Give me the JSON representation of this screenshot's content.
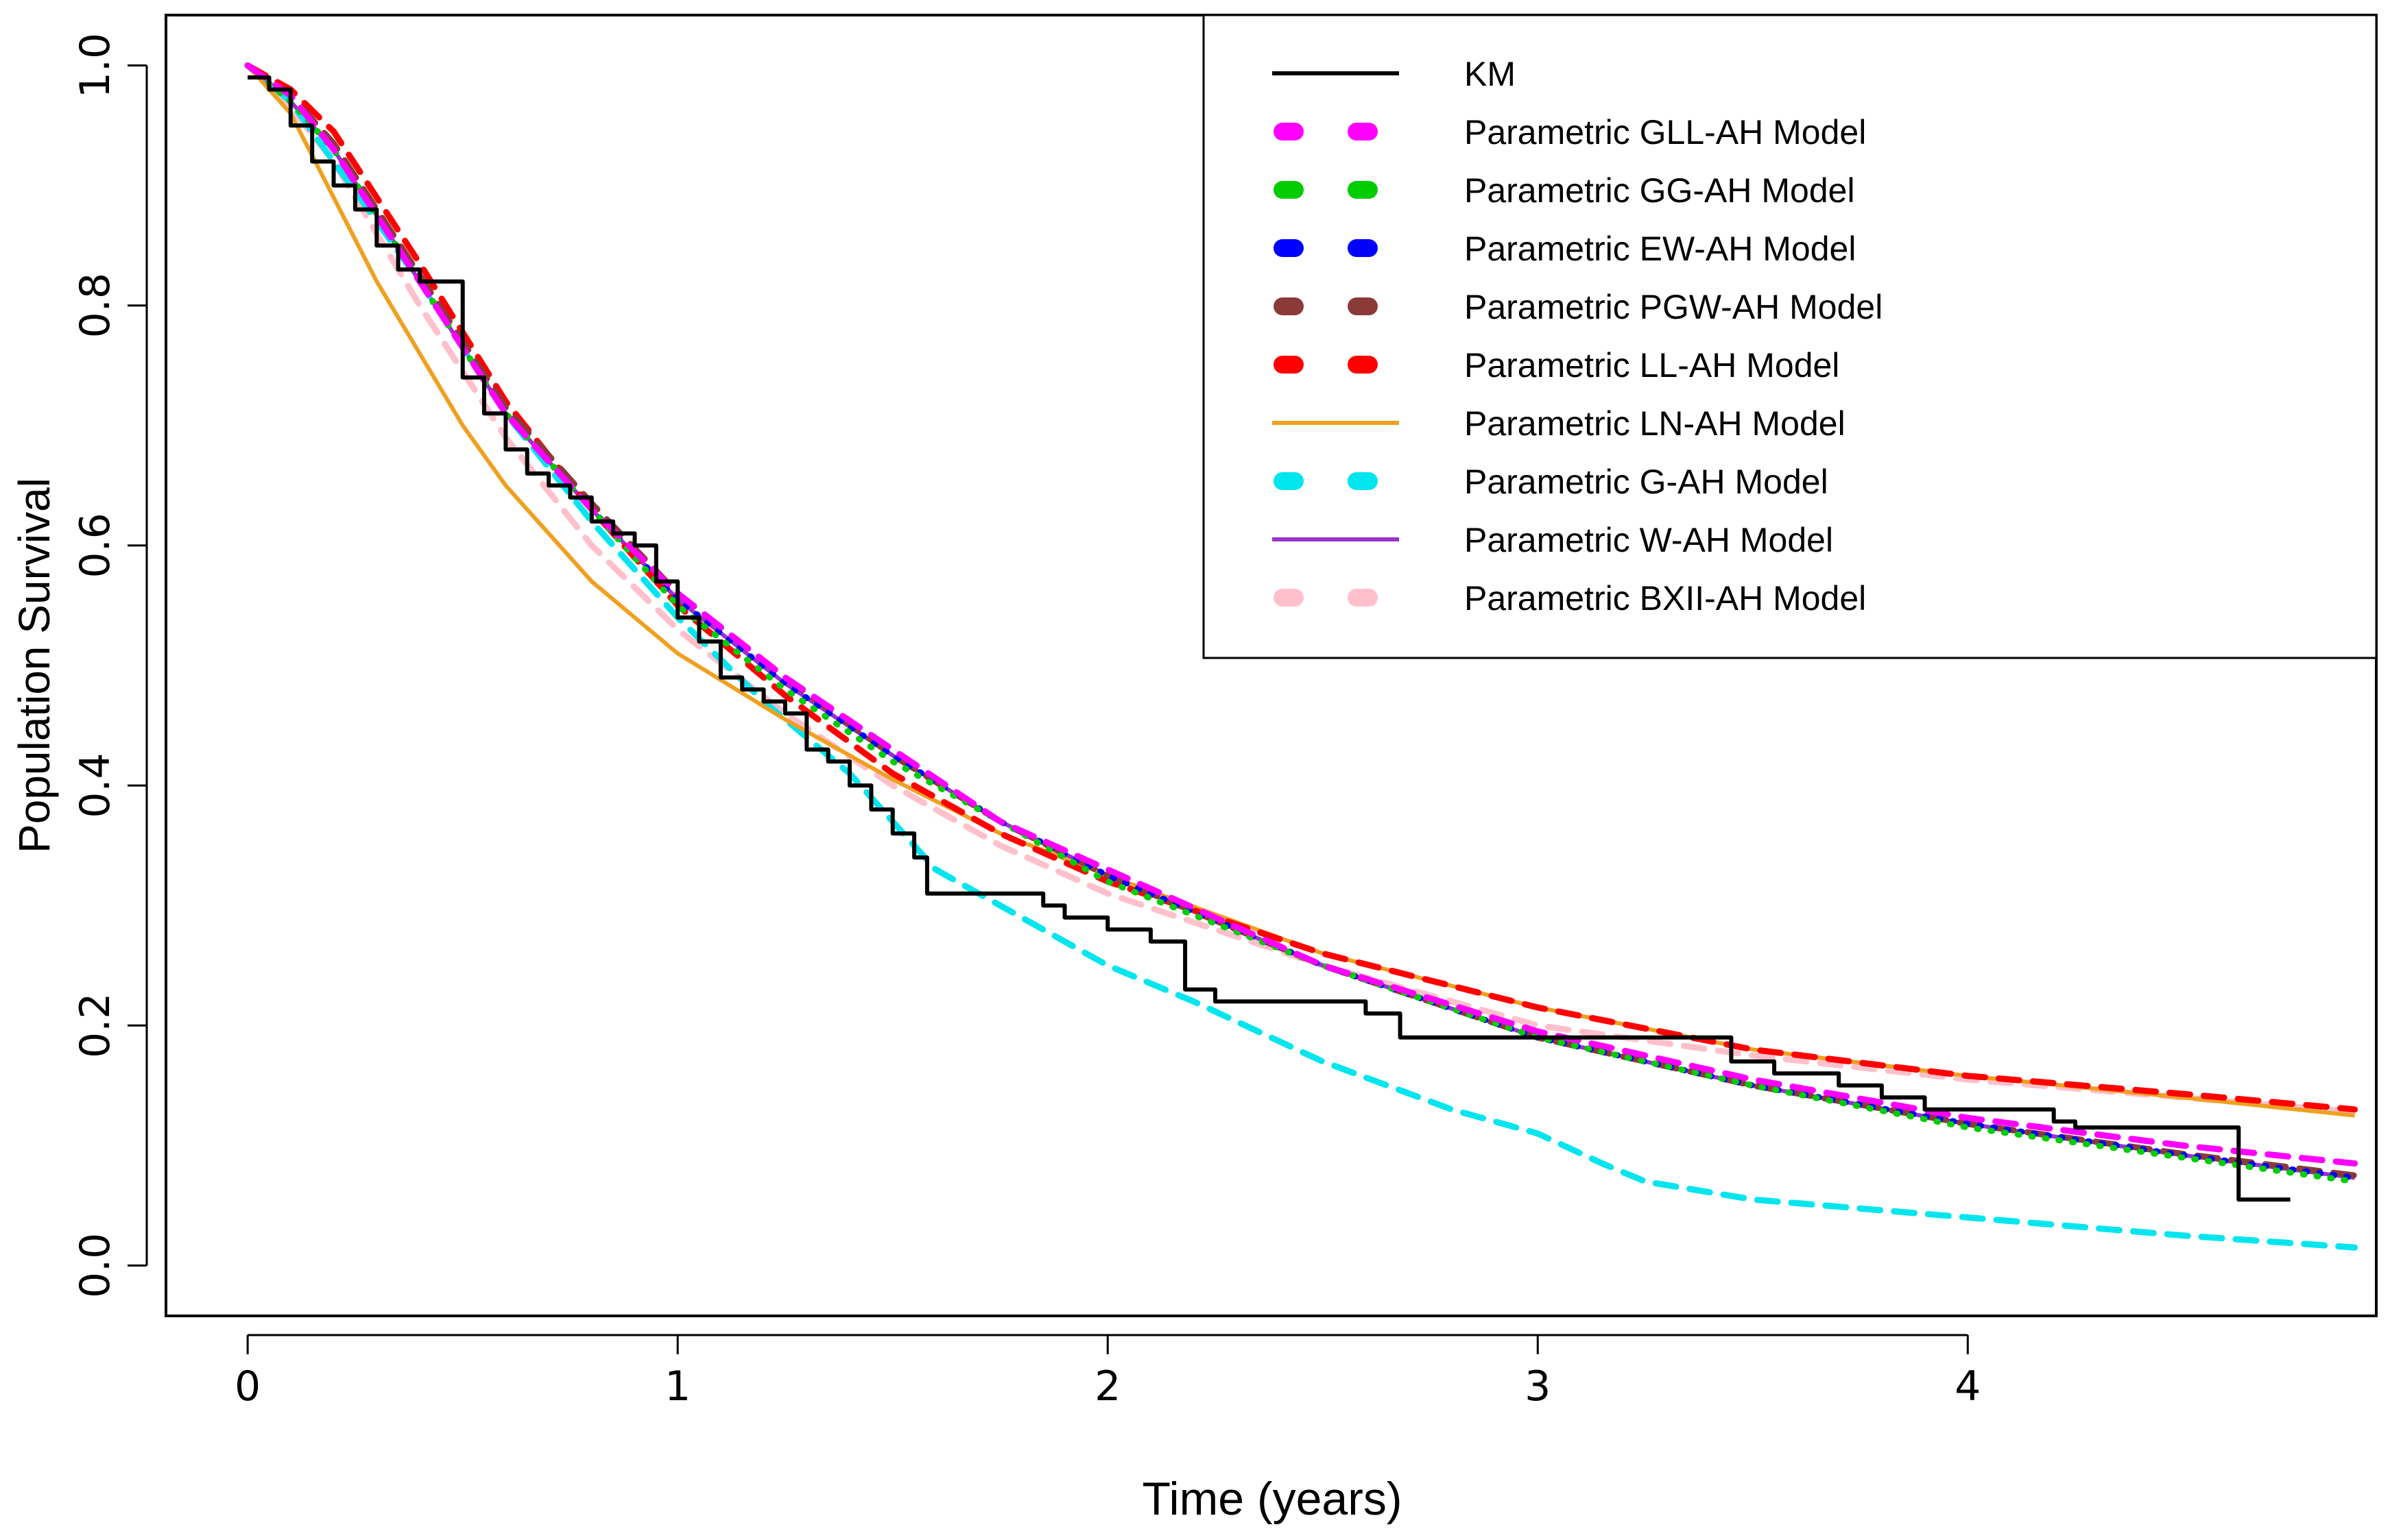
{
  "chart_data": {
    "type": "line",
    "title": "",
    "xlabel": "Time (years)",
    "ylabel": "Population Survival",
    "xlim": [
      -0.19,
      4.95
    ],
    "ylim": [
      -0.042,
      1.042
    ],
    "xticks": [
      0,
      1,
      2,
      3,
      4
    ],
    "xtick_labels": [
      "0",
      "1",
      "2",
      "3",
      "4"
    ],
    "yticks": [
      0.0,
      0.2,
      0.4,
      0.6,
      0.8,
      1.0
    ],
    "ytick_labels": [
      "0.0",
      "0.2",
      "0.4",
      "0.6",
      "0.8",
      "1.0"
    ],
    "grid": false,
    "legend_position": "top-right",
    "series": [
      {
        "name": "KM",
        "color": "#000000",
        "style": "solid",
        "step": true,
        "x": [
          0,
          0.05,
          0.1,
          0.15,
          0.2,
          0.25,
          0.3,
          0.35,
          0.4,
          0.5,
          0.55,
          0.6,
          0.65,
          0.7,
          0.75,
          0.8,
          0.85,
          0.9,
          0.95,
          1.0,
          1.05,
          1.1,
          1.15,
          1.2,
          1.25,
          1.3,
          1.35,
          1.4,
          1.45,
          1.5,
          1.55,
          1.58,
          1.62,
          1.85,
          1.9,
          2.0,
          2.1,
          2.18,
          2.25,
          2.4,
          2.6,
          2.68,
          2.8,
          3.0,
          3.2,
          3.35,
          3.45,
          3.55,
          3.7,
          3.8,
          3.9,
          4.05,
          4.2,
          4.25,
          4.6,
          4.63,
          4.75
        ],
        "y": [
          0.99,
          0.98,
          0.95,
          0.92,
          0.9,
          0.88,
          0.85,
          0.83,
          0.82,
          0.74,
          0.71,
          0.68,
          0.66,
          0.65,
          0.64,
          0.62,
          0.61,
          0.6,
          0.57,
          0.54,
          0.52,
          0.49,
          0.48,
          0.47,
          0.46,
          0.43,
          0.42,
          0.4,
          0.38,
          0.36,
          0.34,
          0.31,
          0.31,
          0.3,
          0.29,
          0.28,
          0.27,
          0.23,
          0.22,
          0.22,
          0.21,
          0.19,
          0.19,
          0.19,
          0.19,
          0.19,
          0.17,
          0.16,
          0.15,
          0.14,
          0.13,
          0.13,
          0.12,
          0.115,
          0.115,
          0.055,
          0.055
        ]
      },
      {
        "name": "Parametric GLL-AH Model",
        "color": "#ff00ff",
        "style": "dashed",
        "x": [
          0,
          0.1,
          0.2,
          0.4,
          0.6,
          0.8,
          1.0,
          1.25,
          1.5,
          1.75,
          2.0,
          2.5,
          3.0,
          3.5,
          4.0,
          4.5,
          4.9
        ],
        "y": [
          1.0,
          0.975,
          0.93,
          0.82,
          0.71,
          0.63,
          0.56,
          0.49,
          0.43,
          0.37,
          0.33,
          0.25,
          0.195,
          0.155,
          0.123,
          0.1,
          0.085
        ]
      },
      {
        "name": "Parametric GG-AH Model",
        "color": "#00cc00",
        "style": "dotted",
        "x": [
          0,
          0.1,
          0.2,
          0.4,
          0.6,
          0.8,
          1.0,
          1.25,
          1.5,
          1.75,
          2.0,
          2.5,
          3.0,
          3.5,
          4.0,
          4.5,
          4.9
        ],
        "y": [
          1.0,
          0.97,
          0.93,
          0.82,
          0.71,
          0.63,
          0.55,
          0.48,
          0.42,
          0.37,
          0.32,
          0.25,
          0.19,
          0.15,
          0.115,
          0.09,
          0.07
        ]
      },
      {
        "name": "Parametric EW-AH Model",
        "color": "#0000ff",
        "style": "dotted",
        "x": [
          0,
          0.1,
          0.2,
          0.4,
          0.6,
          0.8,
          1.0,
          1.25,
          1.5,
          1.75,
          2.0,
          2.5,
          3.0,
          3.5,
          4.0,
          4.5,
          4.9
        ],
        "y": [
          1.0,
          0.97,
          0.93,
          0.82,
          0.71,
          0.63,
          0.555,
          0.485,
          0.425,
          0.37,
          0.325,
          0.25,
          0.19,
          0.15,
          0.118,
          0.092,
          0.073
        ]
      },
      {
        "name": "Parametric PGW-AH Model",
        "color": "#8b3a3a",
        "style": "dashed",
        "x": [
          0,
          0.1,
          0.2,
          0.4,
          0.6,
          0.8,
          1.0,
          1.25,
          1.5,
          1.75,
          2.0,
          2.5,
          3.0,
          3.5,
          4.0,
          4.5,
          4.9
        ],
        "y": [
          1.0,
          0.975,
          0.935,
          0.825,
          0.715,
          0.635,
          0.56,
          0.49,
          0.425,
          0.37,
          0.325,
          0.25,
          0.19,
          0.15,
          0.118,
          0.093,
          0.075
        ]
      },
      {
        "name": "Parametric LL-AH Model",
        "color": "#ff0000",
        "style": "dashed",
        "x": [
          0,
          0.1,
          0.2,
          0.4,
          0.6,
          0.8,
          1.0,
          1.25,
          1.5,
          1.75,
          2.0,
          2.5,
          3.0,
          3.5,
          4.0,
          4.5,
          4.9
        ],
        "y": [
          1.0,
          0.98,
          0.945,
          0.835,
          0.72,
          0.63,
          0.55,
          0.475,
          0.41,
          0.36,
          0.32,
          0.26,
          0.215,
          0.18,
          0.158,
          0.143,
          0.13
        ]
      },
      {
        "name": "Parametric LN-AH Model",
        "color": "#f0a020",
        "style": "solid",
        "x": [
          0,
          0.1,
          0.2,
          0.3,
          0.4,
          0.5,
          0.6,
          0.7,
          0.8,
          0.9,
          1.0,
          1.25,
          1.5,
          1.75,
          2.0,
          2.5,
          3.0,
          3.5,
          4.0,
          4.5,
          4.9
        ],
        "y": [
          1.0,
          0.96,
          0.89,
          0.82,
          0.76,
          0.7,
          0.65,
          0.61,
          0.57,
          0.54,
          0.51,
          0.455,
          0.405,
          0.36,
          0.325,
          0.26,
          0.215,
          0.18,
          0.158,
          0.14,
          0.125
        ]
      },
      {
        "name": "Parametric G-AH Model",
        "color": "#00e5ee",
        "style": "dashed",
        "x": [
          0,
          0.1,
          0.2,
          0.4,
          0.6,
          0.8,
          1.0,
          1.2,
          1.4,
          1.6,
          1.8,
          2.0,
          2.2,
          2.5,
          2.8,
          3.0,
          3.15,
          3.25,
          3.5,
          4.0,
          4.5,
          4.9
        ],
        "y": [
          1.0,
          0.97,
          0.92,
          0.82,
          0.71,
          0.62,
          0.54,
          0.47,
          0.41,
          0.33,
          0.29,
          0.25,
          0.22,
          0.17,
          0.13,
          0.11,
          0.085,
          0.07,
          0.055,
          0.04,
          0.025,
          0.015
        ]
      },
      {
        "name": "Parametric W-AH Model",
        "color": "#9932cc",
        "style": "solid",
        "x": [
          0,
          0.1,
          0.2,
          0.4,
          0.6,
          0.8,
          1.0,
          1.25,
          1.5,
          1.75,
          2.0,
          2.5,
          3.0,
          3.5,
          4.0,
          4.5,
          4.9
        ],
        "y": [
          1.0,
          0.97,
          0.93,
          0.82,
          0.71,
          0.63,
          0.555,
          0.485,
          0.425,
          0.37,
          0.325,
          0.25,
          0.19,
          0.15,
          0.118,
          0.092,
          0.073
        ]
      },
      {
        "name": "Parametric BXII-AH Model",
        "color": "#ffc0cb",
        "style": "dashed",
        "x": [
          0,
          0.1,
          0.2,
          0.4,
          0.6,
          0.8,
          1.0,
          1.25,
          1.5,
          1.75,
          2.0,
          2.5,
          3.0,
          3.5,
          4.0,
          4.5,
          4.9
        ],
        "y": [
          1.0,
          0.965,
          0.92,
          0.8,
          0.69,
          0.6,
          0.53,
          0.46,
          0.4,
          0.35,
          0.31,
          0.25,
          0.2,
          0.175,
          0.155,
          0.14,
          0.128
        ]
      }
    ]
  }
}
